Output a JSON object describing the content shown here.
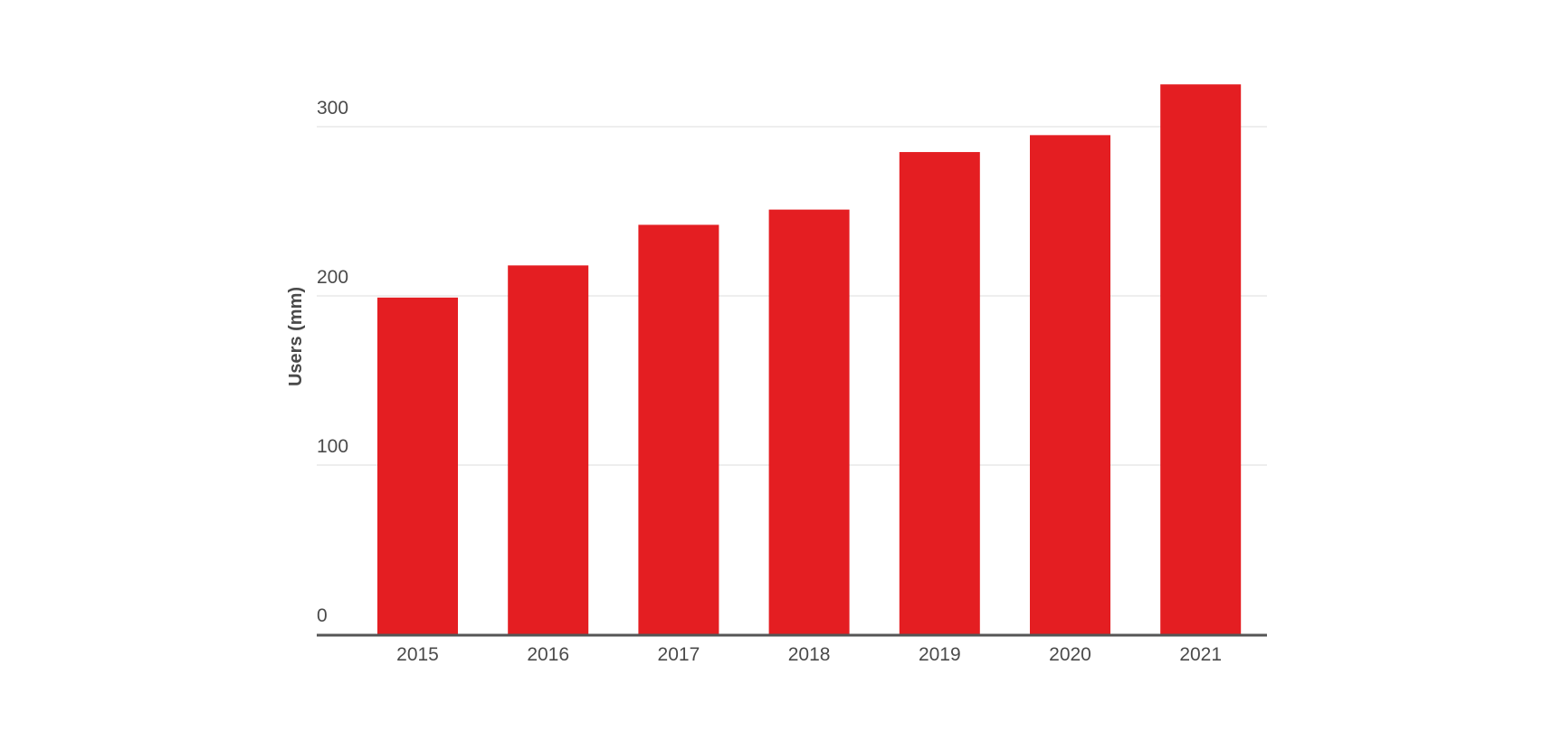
{
  "chart_data": {
    "type": "bar",
    "title": "",
    "xlabel": "",
    "ylabel": "Users (mm)",
    "categories": [
      "2015",
      "2016",
      "2017",
      "2018",
      "2019",
      "2020",
      "2021"
    ],
    "values": [
      199,
      218,
      242,
      251,
      285,
      295,
      325
    ],
    "ylim": [
      0,
      330
    ],
    "yticks": [
      0,
      100,
      200,
      300
    ],
    "grid": true,
    "legend": "none",
    "colors": {
      "bar": "#e41e22",
      "grid": "#e8e8e8",
      "axis": "#555555",
      "text": "#4a4a4a"
    }
  }
}
